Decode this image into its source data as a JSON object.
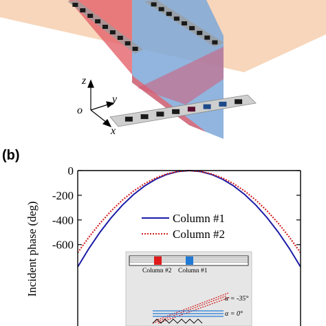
{
  "panel_a": {
    "axes": {
      "z": "z",
      "y": "y",
      "x": "x",
      "o": "o"
    }
  },
  "chart_data": {
    "type": "line",
    "panel_label": "(b)",
    "ylabel": "Incident phase (deg)",
    "xlabel": "",
    "ylim": [
      -750,
      0
    ],
    "yticks": [
      0,
      -200,
      -400,
      -600
    ],
    "ytick_labels": [
      "0",
      "-200",
      "-400",
      "-600"
    ],
    "xlim": [
      -1,
      1
    ],
    "series": [
      {
        "name": "Column #1",
        "color": "#1a1aa6",
        "style": "solid",
        "x": [
          -1.0,
          -0.9,
          -0.8,
          -0.7,
          -0.6,
          -0.5,
          -0.4,
          -0.3,
          -0.2,
          -0.1,
          0.0,
          0.1,
          0.2,
          0.3,
          0.4,
          0.5,
          0.6,
          0.7,
          0.8,
          0.9,
          1.0
        ],
        "values": [
          -780,
          -632,
          -499,
          -382,
          -281,
          -195,
          -125,
          -70,
          -31,
          -8,
          0,
          -8,
          -31,
          -70,
          -125,
          -195,
          -281,
          -382,
          -499,
          -632,
          -780
        ]
      },
      {
        "name": "Column #2",
        "color": "#d42020",
        "style": "dotted",
        "x": [
          -1.0,
          -0.9,
          -0.8,
          -0.7,
          -0.6,
          -0.5,
          -0.4,
          -0.3,
          -0.2,
          -0.1,
          0.0,
          0.1,
          0.2,
          0.3,
          0.4,
          0.5,
          0.6,
          0.7,
          0.8,
          0.9,
          1.0
        ],
        "values": [
          -665,
          -540,
          -427,
          -327,
          -240,
          -167,
          -107,
          -60,
          -27,
          -7,
          0,
          -7,
          -27,
          -60,
          -107,
          -167,
          -240,
          -327,
          -427,
          -540,
          -665
        ]
      }
    ],
    "legend_position": "center",
    "inset": {
      "column2_label": "Column #2",
      "column1_label": "Column #1",
      "angle_labels": [
        "α = -35°",
        "α = 0°"
      ]
    }
  }
}
